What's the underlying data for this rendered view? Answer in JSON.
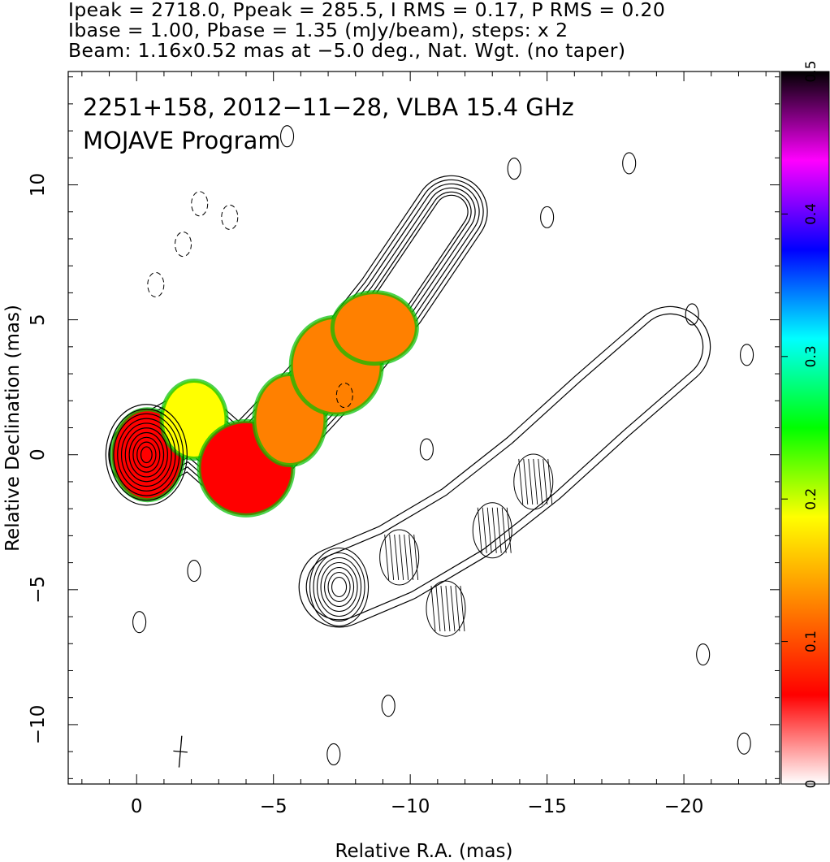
{
  "header": {
    "line1": "Ipeak = 2718.0, Ppeak = 285.5, I RMS = 0.17, P RMS = 0.20",
    "line2": "Ibase = 1.00, Pbase = 1.35 (mJy/beam), steps: x 2",
    "line3": "Beam: 1.16x0.52 mas at −5.0 deg., Nat. Wgt. (no taper)"
  },
  "annotations": {
    "source": "2251+158, 2012−11−28, VLBA 15.4 GHz",
    "program": "MOJAVE Program"
  },
  "chart_data": {
    "type": "heatmap",
    "xlabel": "Relative R.A. (mas)",
    "ylabel": "Relative Declination (mas)",
    "xlim": [
      2.5,
      -23.5
    ],
    "ylim": [
      -12.2,
      14.2
    ],
    "xticks": [
      0,
      -5,
      -10,
      -15,
      -20
    ],
    "xtick_labels": [
      "0",
      "−5",
      "−10",
      "−15",
      "−20"
    ],
    "yticks": [
      -10,
      -5,
      0,
      5,
      10
    ],
    "ytick_labels": [
      "−10",
      "−5",
      "0",
      "5",
      "10"
    ],
    "colorbar": {
      "range": [
        0,
        0.5
      ],
      "ticks": [
        0,
        0.1,
        0.2,
        0.3,
        0.4,
        0.5
      ],
      "tick_labels": [
        "0",
        "0.1",
        "0.2",
        "0.3",
        "0.4",
        "0.5"
      ],
      "stops": [
        "#ffffff",
        "#ff0000",
        "#ff8000",
        "#ffff00",
        "#00ff00",
        "#00ffff",
        "#0000ff",
        "#ff00ff",
        "#000000"
      ]
    },
    "core": {
      "ra": -0.3,
      "dec": 0.0
    },
    "jet_ridge": [
      {
        "ra": -0.3,
        "dec": 0.0
      },
      {
        "ra": -2.0,
        "dec": 1.0
      },
      {
        "ra": -3.8,
        "dec": -0.6
      },
      {
        "ra": -5.6,
        "dec": 1.3
      },
      {
        "ra": -7.5,
        "dec": 3.4
      },
      {
        "ra": -9.3,
        "dec": 5.7
      },
      {
        "ra": -11.5,
        "dec": 9.0
      }
    ],
    "polarization_regions": [
      {
        "ra": -0.4,
        "dec": 0.0,
        "frac": 0.08
      },
      {
        "ra": -2.1,
        "dec": 1.3,
        "frac": 0.21
      },
      {
        "ra": -4.0,
        "dec": -0.5,
        "frac": 0.07
      },
      {
        "ra": -5.6,
        "dec": 1.3,
        "frac": 0.1
      },
      {
        "ra": -7.3,
        "dec": 3.3,
        "frac": 0.11
      },
      {
        "ra": -8.7,
        "dec": 4.7,
        "frac": 0.14
      }
    ],
    "secondary_panel_core": {
      "ra": -7.4,
      "dec": -4.9
    },
    "beam": {
      "major_mas": 1.16,
      "minor_mas": 0.52,
      "pa_deg": -5.0
    }
  }
}
